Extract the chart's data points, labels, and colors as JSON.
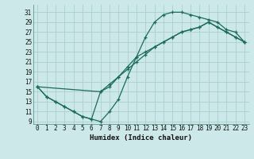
{
  "xlabel": "Humidex (Indice chaleur)",
  "bg_color": "#cde8e8",
  "grid_color": "#aacfcf",
  "line_color": "#1a6b5a",
  "xlim": [
    -0.5,
    23.5
  ],
  "ylim": [
    8.5,
    32.5
  ],
  "xticks": [
    0,
    1,
    2,
    3,
    4,
    5,
    6,
    7,
    8,
    9,
    10,
    11,
    12,
    13,
    14,
    15,
    16,
    17,
    18,
    19,
    20,
    21,
    22,
    23
  ],
  "yticks": [
    9,
    11,
    13,
    15,
    17,
    19,
    21,
    23,
    25,
    27,
    29,
    31
  ],
  "line1_x": [
    0,
    1,
    2,
    3,
    4,
    5,
    6,
    7,
    8,
    9,
    10,
    11,
    12,
    13,
    14,
    15,
    16,
    17,
    18,
    19,
    20,
    21,
    22,
    23
  ],
  "line1_y": [
    16,
    14,
    13,
    12,
    11,
    10,
    9.5,
    9,
    11,
    13.5,
    18,
    22,
    26,
    29,
    30.5,
    31,
    31,
    30.5,
    30,
    29.5,
    29,
    27.5,
    27,
    25
  ],
  "line2_x": [
    0,
    7,
    8,
    9,
    10,
    11,
    12,
    13,
    14,
    15,
    16,
    17,
    18,
    19,
    20,
    21,
    22,
    23
  ],
  "line2_y": [
    16,
    15,
    16,
    18,
    20,
    22,
    23,
    24,
    25,
    26,
    27,
    27.5,
    28,
    29,
    28,
    27,
    26,
    25
  ],
  "line3_x": [
    0,
    1,
    2,
    3,
    4,
    5,
    6,
    7,
    8,
    9,
    10,
    11,
    12,
    13,
    14,
    15,
    16,
    17,
    18,
    19,
    20,
    21,
    22,
    23
  ],
  "line3_y": [
    16,
    14,
    13,
    12,
    11,
    10,
    9.5,
    15,
    16.5,
    18,
    19.5,
    21,
    22.5,
    24,
    25,
    26,
    27,
    27.5,
    28,
    29,
    28,
    27,
    26,
    25
  ]
}
